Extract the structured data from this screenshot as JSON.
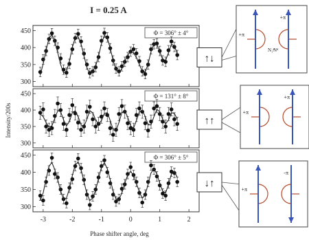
{
  "chart_data": {
    "type": "scatter",
    "title": "I = 0.25 A",
    "xlabel": "Phase shifter angle, deg",
    "ylabel": "Intensity/200s",
    "xlim": [
      -3.35,
      2.35
    ],
    "ylim": [
      285,
      465
    ],
    "x_ticks": [
      "-3",
      "-2",
      "-1",
      "0",
      "1",
      "2"
    ],
    "y_ticks": [
      "300",
      "350",
      "400",
      "450"
    ],
    "grid": false,
    "panels": [
      {
        "phase_label": "Φ = 306° ± 4°",
        "spin_arrows": "↑↓",
        "series": [
          {
            "type": "scatter",
            "x": [
              -3.1,
              -3.0,
              -2.9,
              -2.8,
              -2.7,
              -2.6,
              -2.5,
              -2.4,
              -2.3,
              -2.2,
              -2.1,
              -2.0,
              -1.9,
              -1.8,
              -1.7,
              -1.6,
              -1.5,
              -1.4,
              -1.3,
              -1.2,
              -1.1,
              -1.0,
              -0.9,
              -0.8,
              -0.7,
              -0.6,
              -0.5,
              -0.4,
              -0.3,
              -0.2,
              -0.1,
              0.0,
              0.1,
              0.2,
              0.3,
              0.4,
              0.5,
              0.6,
              0.7,
              0.8,
              0.9,
              1.0,
              1.1,
              1.2,
              1.3,
              1.4,
              1.5,
              1.6
            ],
            "y": [
              328,
              365,
              390,
              425,
              442,
              420,
              400,
              368,
              335,
              326,
              352,
              395,
              428,
              440,
              418,
              382,
              350,
              325,
              330,
              342,
              372,
              420,
              443,
              430,
              398,
              362,
              338,
              330,
              345,
              358,
              372,
              388,
              395,
              383,
              360,
              330,
              322,
              350,
              395,
              410,
              412,
              390,
              362,
              358,
              392,
              418,
              402,
              378
            ],
            "err": [
              14,
              14,
              14,
              14,
              14,
              14,
              14,
              14,
              14,
              14,
              14,
              14,
              14,
              14,
              14,
              14,
              14,
              14,
              14,
              14,
              14,
              14,
              14,
              14,
              14,
              14,
              14,
              14,
              14,
              14,
              14,
              14,
              14,
              14,
              14,
              14,
              14,
              14,
              14,
              14,
              14,
              14,
              14,
              14,
              14,
              14,
              14,
              14
            ]
          },
          {
            "type": "line",
            "x": [
              -3.1,
              -3.0,
              -2.9,
              -2.8,
              -2.7,
              -2.6,
              -2.5,
              -2.4,
              -2.3,
              -2.2,
              -2.1,
              -2.0,
              -1.9,
              -1.8,
              -1.7,
              -1.6,
              -1.5,
              -1.4,
              -1.3,
              -1.2,
              -1.1,
              -1.0,
              -0.9,
              -0.8,
              -0.7,
              -0.6,
              -0.5,
              -0.4,
              -0.3,
              -0.2,
              -0.1,
              0.0,
              0.1,
              0.2,
              0.3,
              0.4,
              0.5,
              0.6,
              0.7,
              0.8,
              0.9,
              1.0,
              1.1,
              1.2,
              1.3,
              1.4,
              1.5,
              1.6
            ],
            "y": [
              320,
              352,
              392,
              428,
              438,
              418,
              385,
              350,
              325,
              330,
              360,
              400,
              430,
              432,
              410,
              375,
              342,
              322,
              330,
              345,
              375,
              412,
              436,
              428,
              398,
              362,
              335,
              325,
              338,
              360,
              378,
              388,
              385,
              370,
              350,
              330,
              328,
              352,
              388,
              410,
              410,
              388,
              365,
              362,
              385,
              410,
              405,
              382
            ]
          }
        ]
      },
      {
        "phase_label": "Φ = 131° ± 8°",
        "spin_arrows": "↑↑",
        "series": [
          {
            "type": "scatter",
            "x": [
              -3.1,
              -3.0,
              -2.9,
              -2.8,
              -2.7,
              -2.6,
              -2.5,
              -2.4,
              -2.3,
              -2.2,
              -2.1,
              -2.0,
              -1.9,
              -1.8,
              -1.7,
              -1.6,
              -1.5,
              -1.4,
              -1.3,
              -1.2,
              -1.1,
              -1.0,
              -0.9,
              -0.8,
              -0.7,
              -0.6,
              -0.5,
              -0.4,
              -0.3,
              -0.2,
              -0.1,
              0.0,
              0.1,
              0.2,
              0.3,
              0.4,
              0.5,
              0.6,
              0.7,
              0.8,
              0.9,
              1.0,
              1.1,
              1.2,
              1.3,
              1.4,
              1.5,
              1.6
            ],
            "y": [
              392,
              402,
              350,
              340,
              345,
              382,
              420,
              400,
              358,
              340,
              385,
              415,
              390,
              362,
              340,
              350,
              395,
              410,
              372,
              350,
              358,
              380,
              405,
              385,
              345,
              325,
              340,
              388,
              412,
              395,
              360,
              345,
              340,
              385,
              405,
              395,
              360,
              338,
              365,
              405,
              412,
              388,
              365,
              350,
              388,
              402,
              372,
              358
            ],
            "err": [
              20,
              20,
              20,
              20,
              20,
              20,
              20,
              20,
              20,
              20,
              20,
              20,
              20,
              20,
              20,
              20,
              20,
              20,
              20,
              20,
              20,
              20,
              20,
              20,
              20,
              20,
              20,
              20,
              20,
              20,
              20,
              20,
              20,
              20,
              20,
              20,
              20,
              20,
              20,
              20,
              20,
              20,
              20,
              20,
              20,
              20,
              20,
              20
            ]
          },
          {
            "type": "line",
            "x": [
              -3.1,
              -3.0,
              -2.9,
              -2.8,
              -2.7,
              -2.6,
              -2.5,
              -2.4,
              -2.3,
              -2.2,
              -2.1,
              -2.0,
              -1.9,
              -1.8,
              -1.7,
              -1.6,
              -1.5,
              -1.4,
              -1.3,
              -1.2,
              -1.1,
              -1.0,
              -0.9,
              -0.8,
              -0.7,
              -0.6,
              -0.5,
              -0.4,
              -0.3,
              -0.2,
              -0.1,
              0.0,
              0.1,
              0.2,
              0.3,
              0.4,
              0.5,
              0.6,
              0.7,
              0.8,
              0.9,
              1.0,
              1.1,
              1.2,
              1.3,
              1.4,
              1.5,
              1.6
            ],
            "y": [
              388,
              380,
              362,
              348,
              352,
              375,
              398,
              395,
              370,
              352,
              365,
              392,
              398,
              380,
              355,
              350,
              372,
              398,
              392,
              370,
              358,
              368,
              390,
              392,
              368,
              340,
              338,
              362,
              392,
              398,
              378,
              352,
              345,
              368,
              395,
              400,
              380,
              355,
              355,
              380,
              402,
              395,
              372,
              358,
              370,
              392,
              390,
              372
            ]
          }
        ]
      },
      {
        "phase_label": "Φ = 306° ± 5°",
        "spin_arrows": "↓↑",
        "series": [
          {
            "type": "scatter",
            "x": [
              -3.1,
              -3.0,
              -2.9,
              -2.8,
              -2.7,
              -2.6,
              -2.5,
              -2.4,
              -2.3,
              -2.2,
              -2.1,
              -2.0,
              -1.9,
              -1.8,
              -1.7,
              -1.6,
              -1.5,
              -1.4,
              -1.3,
              -1.2,
              -1.1,
              -1.0,
              -0.9,
              -0.8,
              -0.7,
              -0.6,
              -0.5,
              -0.4,
              -0.3,
              -0.2,
              -0.1,
              0.0,
              0.1,
              0.2,
              0.3,
              0.4,
              0.5,
              0.6,
              0.7,
              0.8,
              0.9,
              1.0,
              1.1,
              1.2,
              1.3,
              1.4,
              1.5,
              1.6
            ],
            "y": [
              332,
              318,
              372,
              405,
              442,
              395,
              385,
              350,
              322,
              310,
              355,
              380,
              418,
              440,
              412,
              378,
              335,
              305,
              330,
              350,
              385,
              418,
              435,
              400,
              368,
              335,
              315,
              322,
              352,
              365,
              395,
              415,
              392,
              372,
              340,
              312,
              335,
              372,
              420,
              408,
              388,
              362,
              338,
              332,
              368,
              402,
              398,
              372
            ],
            "err": [
              14,
              14,
              14,
              14,
              14,
              14,
              14,
              14,
              14,
              14,
              14,
              14,
              14,
              14,
              14,
              14,
              14,
              14,
              14,
              14,
              14,
              14,
              14,
              14,
              14,
              14,
              14,
              14,
              14,
              14,
              14,
              14,
              14,
              14,
              14,
              14,
              14,
              14,
              14,
              14,
              14,
              14,
              14,
              14,
              14,
              14,
              14,
              14
            ]
          },
          {
            "type": "line",
            "x": [
              -3.1,
              -3.0,
              -2.9,
              -2.8,
              -2.7,
              -2.6,
              -2.5,
              -2.4,
              -2.3,
              -2.2,
              -2.1,
              -2.0,
              -1.9,
              -1.8,
              -1.7,
              -1.6,
              -1.5,
              -1.4,
              -1.3,
              -1.2,
              -1.1,
              -1.0,
              -0.9,
              -0.8,
              -0.7,
              -0.6,
              -0.5,
              -0.4,
              -0.3,
              -0.2,
              -0.1,
              0.0,
              0.1,
              0.2,
              0.3,
              0.4,
              0.5,
              0.6,
              0.7,
              0.8,
              0.9,
              1.0,
              1.1,
              1.2,
              1.3,
              1.4,
              1.5,
              1.6
            ],
            "y": [
              318,
              340,
              380,
              418,
              428,
              408,
              378,
              345,
              322,
              325,
              352,
              390,
              422,
              430,
              408,
              372,
              338,
              318,
              325,
              348,
              382,
              415,
              428,
              410,
              378,
              345,
              322,
              320,
              340,
              368,
              392,
              402,
              392,
              368,
              342,
              325,
              335,
              365,
              398,
              410,
              395,
              368,
              345,
              340,
              365,
              395,
              402,
              385
            ]
          }
        ]
      }
    ]
  },
  "colors": {
    "spin_arrow": "#3a55b8",
    "field_arc": "#b44a2a",
    "ink": "#222222"
  },
  "insets": [
    {
      "left_label": "+π",
      "right_label": "+π",
      "left_sub": "N₁ᵈ",
      "right_sub": "Nᵈ"
    },
    {
      "left_label": "+π",
      "right_label": "+π"
    },
    {
      "left_label": "+π",
      "right_label": "-π"
    }
  ]
}
